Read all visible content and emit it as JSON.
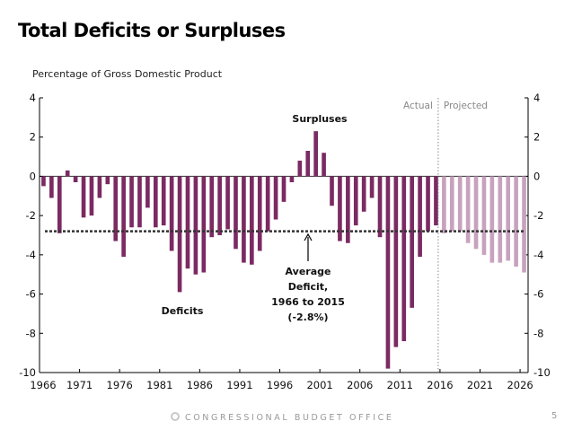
{
  "page": {
    "footer": "CONGRESSIONAL BUDGET OFFICE",
    "page_number": "5"
  },
  "chart_data": {
    "type": "bar",
    "title": "Total Deficits or Surpluses",
    "ylabel": "Percentage of Gross Domestic Product",
    "xlabel": "",
    "ylim": [
      -10,
      4
    ],
    "yticks": [
      4,
      2,
      0,
      -2,
      -4,
      -6,
      -8,
      -10
    ],
    "xticks": [
      "1966",
      "1971",
      "1976",
      "1981",
      "1986",
      "1991",
      "1996",
      "2001",
      "2006",
      "2011",
      "2016",
      "2021",
      "2026"
    ],
    "x": [
      1966,
      1967,
      1968,
      1969,
      1970,
      1971,
      1972,
      1973,
      1974,
      1975,
      1976,
      1977,
      1978,
      1979,
      1980,
      1981,
      1982,
      1983,
      1984,
      1985,
      1986,
      1987,
      1988,
      1989,
      1990,
      1991,
      1992,
      1993,
      1994,
      1995,
      1996,
      1997,
      1998,
      1999,
      2000,
      2001,
      2002,
      2003,
      2004,
      2005,
      2006,
      2007,
      2008,
      2009,
      2010,
      2011,
      2012,
      2013,
      2014,
      2015,
      2016,
      2017,
      2018,
      2019,
      2020,
      2021,
      2022,
      2023,
      2024,
      2025,
      2026
    ],
    "series": [
      {
        "name": "Actual",
        "color": "#7b2a62",
        "values": [
          -0.5,
          -1.1,
          -2.9,
          0.3,
          -0.3,
          -2.1,
          -2.0,
          -1.1,
          -0.4,
          -3.3,
          -4.1,
          -2.6,
          -2.6,
          -1.6,
          -2.6,
          -2.5,
          -3.8,
          -5.9,
          -4.7,
          -5.0,
          -4.9,
          -3.1,
          -3.0,
          -2.7,
          -3.7,
          -4.4,
          -4.5,
          -3.8,
          -2.8,
          -2.2,
          -1.3,
          -0.3,
          0.8,
          1.3,
          2.3,
          1.2,
          -1.5,
          -3.3,
          -3.4,
          -2.5,
          -1.8,
          -1.1,
          -3.1,
          -9.8,
          -8.7,
          -8.4,
          -6.7,
          -4.1,
          -2.8,
          -2.5
        ]
      },
      {
        "name": "Projected",
        "color": "#c8a2bd",
        "values": [
          -2.9,
          -2.8,
          -2.8,
          -3.4,
          -3.7,
          -4.0,
          -4.4,
          -4.4,
          -4.3,
          -4.6,
          -4.9
        ]
      }
    ],
    "reference_line": {
      "value": -2.8,
      "style": "dotted",
      "color": "#333333"
    },
    "divider_labels": {
      "left": "Actual",
      "right": "Projected"
    },
    "annotations": {
      "surpluses": "Surpluses",
      "deficits": "Deficits",
      "average": [
        "Average",
        "Deficit,",
        "1966 to 2015",
        "(-2.8%)"
      ]
    },
    "grid": false,
    "legend": "none"
  }
}
